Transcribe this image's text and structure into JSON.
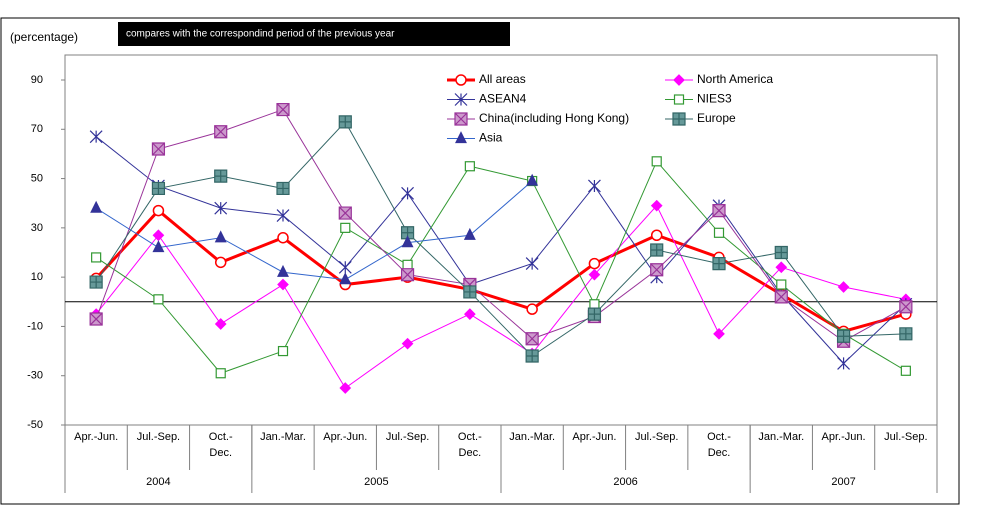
{
  "chart_data": {
    "type": "line",
    "y_axis_label": "(percentage)",
    "note": "compares with the correspondind period of the previous year",
    "categories": [
      "Apr.-Jun.",
      "Jul.-Sep.",
      "Oct.- Dec.",
      "Jan.-Mar.",
      "Apr.-Jun.",
      "Jul.-Sep.",
      "Oct.- Dec.",
      "Jan.-Mar.",
      "Apr.-Jun.",
      "Jul.-Sep.",
      "Oct.- Dec.",
      "Jan.-Mar.",
      "Apr.-Jun.",
      "Jul.-Sep."
    ],
    "x_groups": [
      {
        "label": "2004",
        "span": 3
      },
      {
        "label": "2005",
        "span": 4
      },
      {
        "label": "2006",
        "span": 4
      },
      {
        "label": "2007",
        "span": 3
      }
    ],
    "series": [
      {
        "name": "All areas",
        "color": "#ff0000",
        "marker": "circle",
        "values": [
          9.5,
          37,
          16,
          26,
          7,
          10,
          5,
          -3,
          15.5,
          27,
          18,
          3,
          -12,
          -5
        ]
      },
      {
        "name": "North America",
        "color": "#ff00ff",
        "marker": "diamond",
        "values": [
          -5,
          27,
          -9,
          7,
          -35,
          -17,
          -5,
          -21,
          11,
          39,
          -13,
          14,
          6,
          1
        ]
      },
      {
        "name": "ASEAN4",
        "color": "#333399",
        "marker": "star",
        "values": [
          67,
          47,
          38,
          35,
          14,
          44,
          7,
          15.5,
          47,
          10,
          39,
          3,
          -25,
          -1
        ]
      },
      {
        "name": "NIES3",
        "color": "#339933",
        "marker": "square",
        "values": [
          18,
          1,
          -29,
          -20,
          30,
          15,
          55,
          49,
          -1,
          57,
          28,
          7,
          -13,
          -28
        ]
      },
      {
        "name": "China(including Hong Kong)",
        "color": "#993399",
        "marker": "xsquare",
        "values": [
          -7,
          62,
          69,
          78,
          36,
          11,
          7,
          -15,
          -6,
          13,
          37,
          2,
          -16,
          -2
        ]
      },
      {
        "name": "Europe",
        "color": "#336666",
        "marker": "plussquare",
        "values": [
          8,
          46,
          51,
          46,
          73,
          28,
          4,
          -22,
          -5,
          21,
          15.5,
          20,
          -14,
          -13
        ]
      },
      {
        "name": "Asia",
        "color": "#3366cc",
        "marker": "triangle",
        "values": [
          38,
          22,
          26,
          12,
          9,
          24,
          27,
          49,
          null,
          null,
          null,
          null,
          null,
          null
        ]
      }
    ],
    "ylim": [
      -50,
      90
    ],
    "yticks": [
      90,
      70,
      50,
      30,
      10,
      -10,
      -30,
      -50
    ],
    "grid": false,
    "legend": "top"
  }
}
